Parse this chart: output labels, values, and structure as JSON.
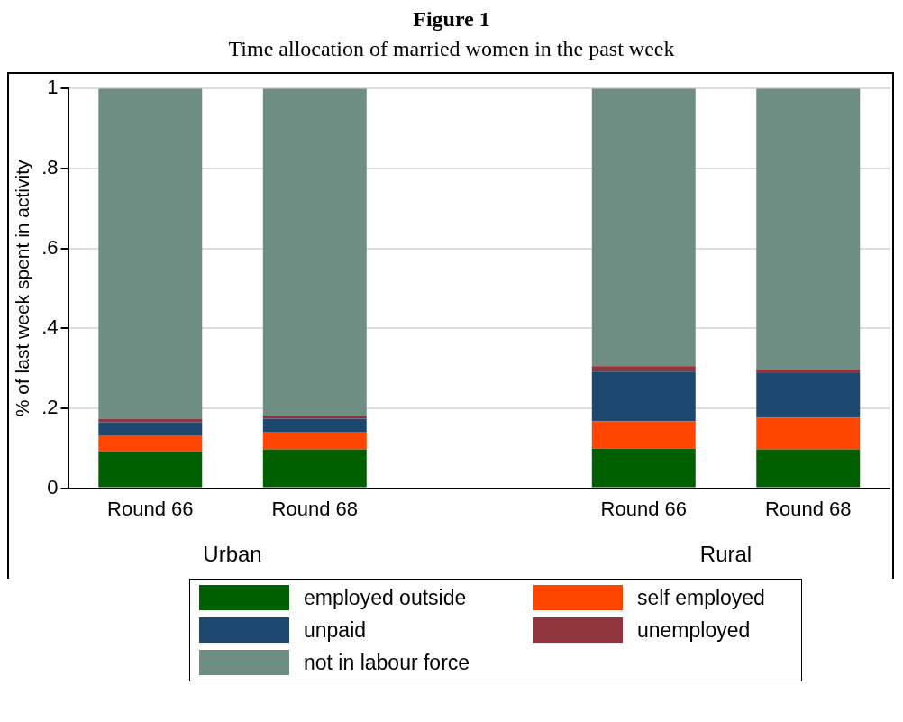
{
  "chart_data": {
    "type": "bar",
    "title": "Figure 1",
    "subtitle": "Time allocation of married women in the past week",
    "ylabel": "% of last week spent in activity",
    "categories": [
      "Round 66",
      "Round 68",
      null,
      "Round 66",
      "Round 68"
    ],
    "annotations": [
      "Urban",
      "Rural"
    ],
    "stacked": true,
    "series": [
      {
        "name": "employed outside",
        "color": "#005f00",
        "values": [
          0.092,
          0.097,
          null,
          0.099,
          0.097
        ]
      },
      {
        "name": "self employed",
        "color": "#ff4500",
        "values": [
          0.04,
          0.044,
          null,
          0.068,
          0.079
        ]
      },
      {
        "name": "unpaid",
        "color": "#1c4870",
        "values": [
          0.033,
          0.033,
          null,
          0.125,
          0.112
        ]
      },
      {
        "name": "unemployed",
        "color": "#90353b",
        "values": [
          0.009,
          0.008,
          null,
          0.013,
          0.009
        ]
      },
      {
        "name": "not in labour force",
        "color": "#6e8e84",
        "values": [
          0.826,
          0.818,
          null,
          0.695,
          0.703
        ]
      }
    ],
    "ylim": [
      0,
      1
    ],
    "yticks": [
      0,
      {
        "value": 0.2,
        "label": ".2"
      },
      {
        "value": 0.4,
        "label": ".4"
      },
      {
        "value": 0.6,
        "label": ".6"
      },
      {
        "value": 0.8,
        "label": ".8"
      },
      1
    ],
    "grid": "y",
    "legend": "bottom"
  }
}
